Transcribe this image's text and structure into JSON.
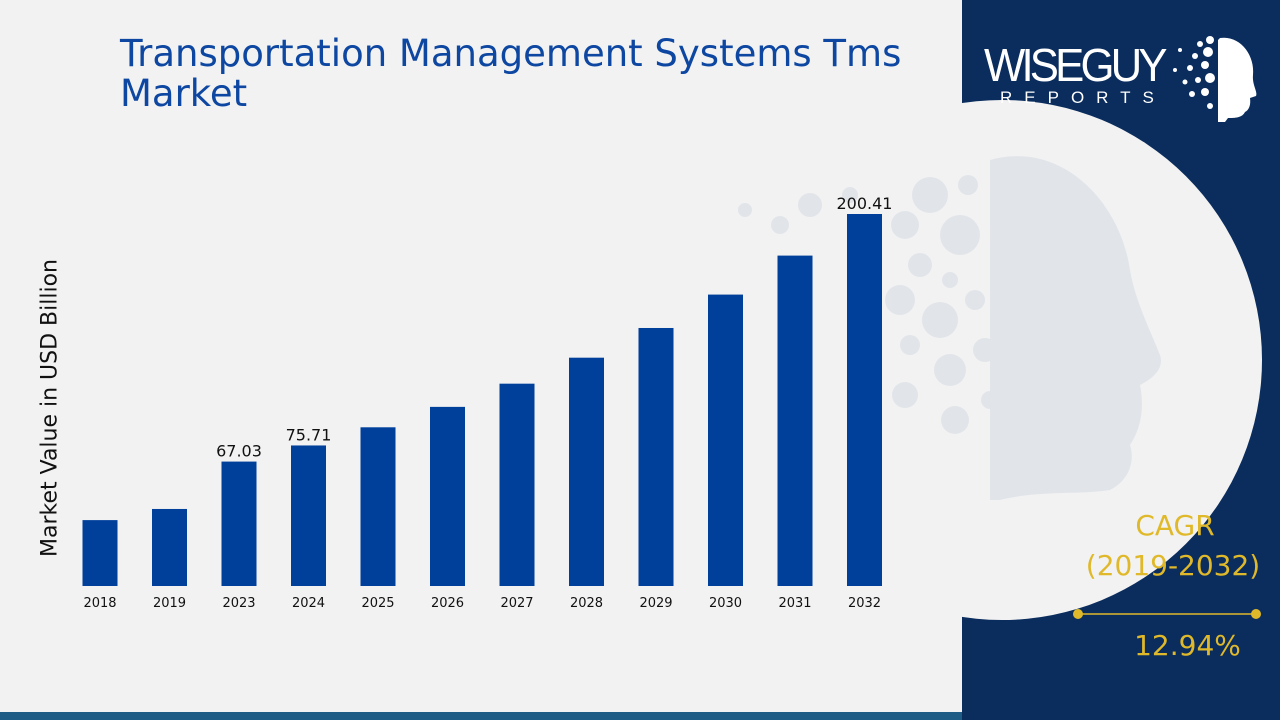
{
  "title": "Transportation Management Systems Tms Market",
  "logo": {
    "main": "WISEGUY",
    "sub": "REPORTS"
  },
  "cagr": {
    "label": "CAGR",
    "period": "(2019-2032)",
    "value": "12.94%"
  },
  "colors": {
    "bar": "#003f9a",
    "panel": "#0a2d5e",
    "accent": "#e0b92a",
    "title": "#0d47a1"
  },
  "chart_data": {
    "type": "bar",
    "title": "Transportation Management Systems Tms Market",
    "xlabel": "",
    "ylabel": "Market Value in USD Billion",
    "categories": [
      "2018",
      "2019",
      "2023",
      "2024",
      "2025",
      "2026",
      "2027",
      "2028",
      "2029",
      "2030",
      "2031",
      "2032"
    ],
    "values": [
      35.5,
      41.5,
      67.03,
      75.71,
      85.5,
      96.5,
      109.0,
      123.0,
      139.0,
      157.0,
      178.0,
      200.41
    ],
    "data_labels": [
      "",
      "",
      "67.03",
      "75.71",
      "",
      "",
      "",
      "",
      "",
      "",
      "",
      "200.41"
    ],
    "ylim": [
      0,
      200.41
    ],
    "grid": false,
    "legend": "none"
  }
}
